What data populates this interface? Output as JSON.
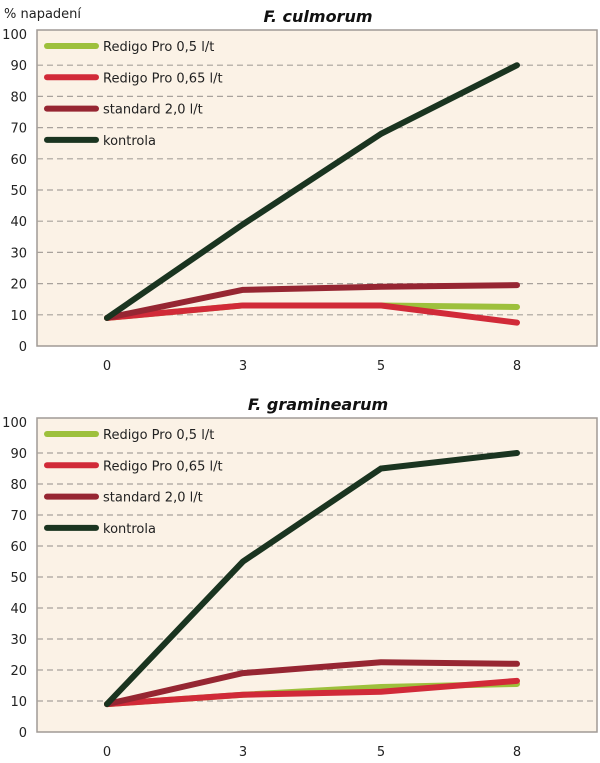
{
  "ylabel": "% napadení",
  "colors": {
    "background": "#fbf2e6",
    "grid": "#a8a29c"
  },
  "chart_data": [
    {
      "type": "line",
      "title": "F. culmorum",
      "ylabel": "% napadení",
      "categories": [
        "0",
        "3",
        "5",
        "8"
      ],
      "ylim": [
        0,
        100
      ],
      "yticks": [
        0,
        10,
        20,
        30,
        40,
        50,
        60,
        70,
        80,
        90,
        100
      ],
      "grid": true,
      "legend": "top-left",
      "series": [
        {
          "name": "Redigo Pro 0,5 l/t",
          "color": "#9dc03c",
          "values": [
            9,
            13,
            13,
            12.5
          ]
        },
        {
          "name": "Redigo Pro 0,65 l/t",
          "color": "#d12a38",
          "values": [
            9,
            13,
            13,
            7.5
          ]
        },
        {
          "name": "standard 2,0 l/t",
          "color": "#962632",
          "values": [
            9,
            18,
            19,
            19.5
          ]
        },
        {
          "name": "kontrola",
          "color": "#1a3420",
          "values": [
            9,
            39,
            68,
            90
          ]
        }
      ]
    },
    {
      "type": "line",
      "title": "F. graminearum",
      "categories": [
        "0",
        "3",
        "5",
        "8"
      ],
      "ylim": [
        0,
        100
      ],
      "yticks": [
        0,
        10,
        20,
        30,
        40,
        50,
        60,
        70,
        80,
        90,
        100
      ],
      "grid": true,
      "legend": "top-left",
      "series": [
        {
          "name": "Redigo Pro 0,5 l/t",
          "color": "#9dc03c",
          "values": [
            9,
            12,
            14.5,
            15.5
          ]
        },
        {
          "name": "Redigo Pro 0,65 l/t",
          "color": "#d12a38",
          "values": [
            9,
            12,
            13,
            16.5
          ]
        },
        {
          "name": "standard 2,0 l/t",
          "color": "#962632",
          "values": [
            9,
            19,
            22.5,
            22
          ]
        },
        {
          "name": "kontrola",
          "color": "#1a3420",
          "values": [
            9,
            55,
            85,
            90
          ]
        }
      ]
    }
  ]
}
